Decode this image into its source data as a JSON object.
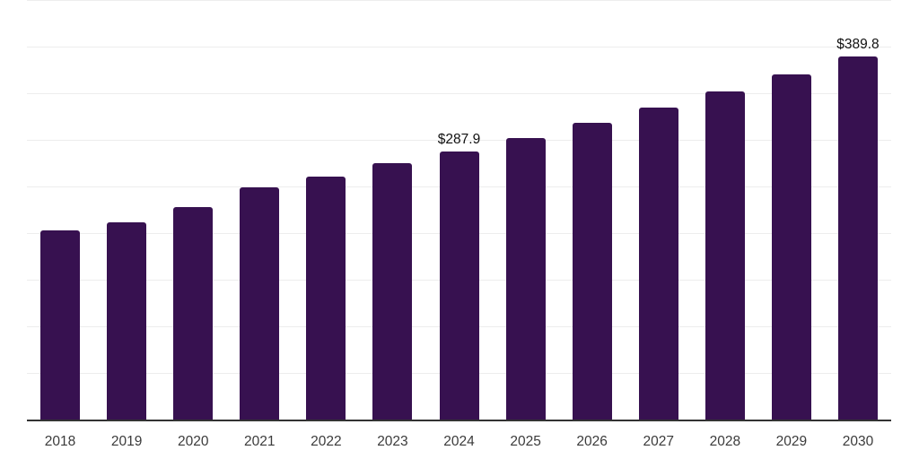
{
  "chart_data": {
    "type": "bar",
    "title": "",
    "xlabel": "",
    "ylabel": "",
    "categories": [
      "2018",
      "2019",
      "2020",
      "2021",
      "2022",
      "2023",
      "2024",
      "2025",
      "2026",
      "2027",
      "2028",
      "2029",
      "2030"
    ],
    "values": [
      202.9,
      211.5,
      227.9,
      249.0,
      260.6,
      275.0,
      287.9,
      301.9,
      318.3,
      334.6,
      351.9,
      370.2,
      389.8
    ],
    "labeled_points": [
      {
        "category": "2024",
        "label": "$287.9"
      },
      {
        "category": "2030",
        "label": "$389.8"
      }
    ],
    "ylim": [
      0,
      450
    ],
    "grid_step": 50,
    "grid": "horizontal-only",
    "legend_position": "none",
    "value_prefix": "$"
  },
  "colors": {
    "bar": "#371150",
    "gridline": "#ededed",
    "axis_line": "#333333",
    "tick_label": "#3b3b3b",
    "value_label": "#111111",
    "background": "#ffffff"
  }
}
